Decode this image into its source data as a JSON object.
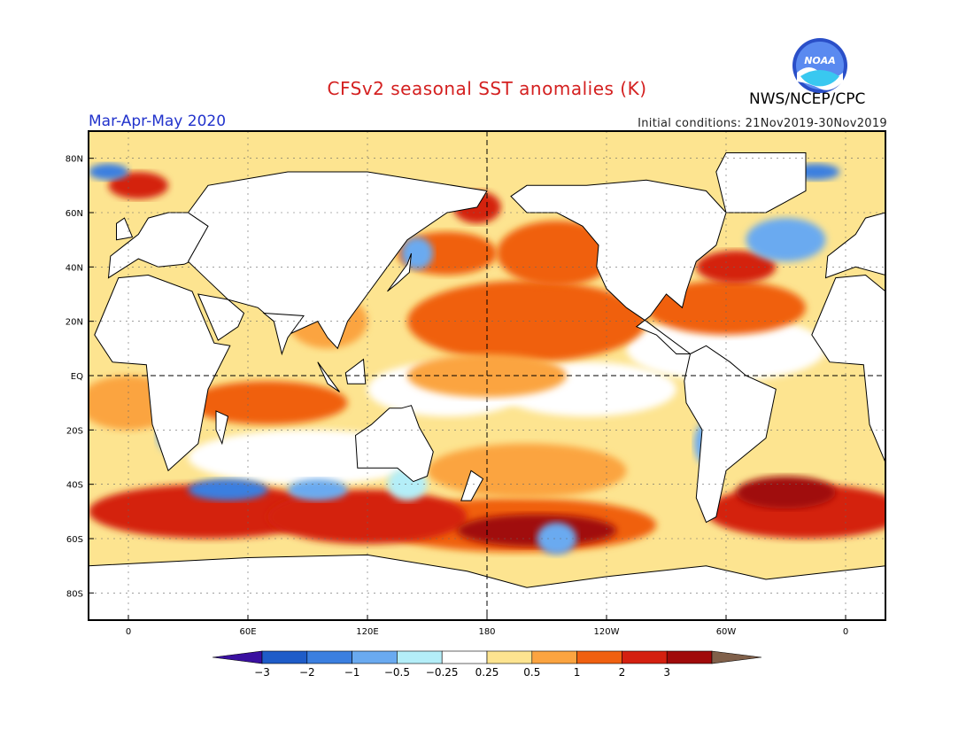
{
  "header": {
    "title": "CFSv2 seasonal SST anomalies (K)",
    "agency": "NWS/NCEP/CPC",
    "season": "Mar-Apr-May 2020",
    "initial_conditions": "Initial conditions: 21Nov2019-30Nov2019",
    "logo_text": "NOAA"
  },
  "colors": {
    "title": "#d42020",
    "season": "#2233cc",
    "frame": "#000000",
    "land": "#ffffff",
    "coast": "#000000"
  },
  "map": {
    "projection": "cylindrical equidistant",
    "lon_range": [
      -20,
      380
    ],
    "lat_range": [
      -90,
      90
    ],
    "lat_ticks": [
      "80N",
      "60N",
      "40N",
      "20N",
      "EQ",
      "20S",
      "40S",
      "60S",
      "80S"
    ],
    "lon_ticks": [
      "0",
      "60E",
      "120E",
      "180",
      "120W",
      "60W",
      "0"
    ],
    "reference_lines": [
      "equator",
      "dateline"
    ]
  },
  "colorbar": {
    "levels": [
      "-3",
      "-2",
      "-1",
      "-0.5",
      "-0.25",
      "0.25",
      "0.5",
      "1",
      "2",
      "3"
    ],
    "colors": [
      "#3a10a0",
      "#1e5cc8",
      "#3b7fe0",
      "#6aaaf0",
      "#b4eef8",
      "#ffffff",
      "#fde490",
      "#fba440",
      "#f06010",
      "#d42010",
      "#a00a0a",
      "#80604a"
    ]
  }
}
